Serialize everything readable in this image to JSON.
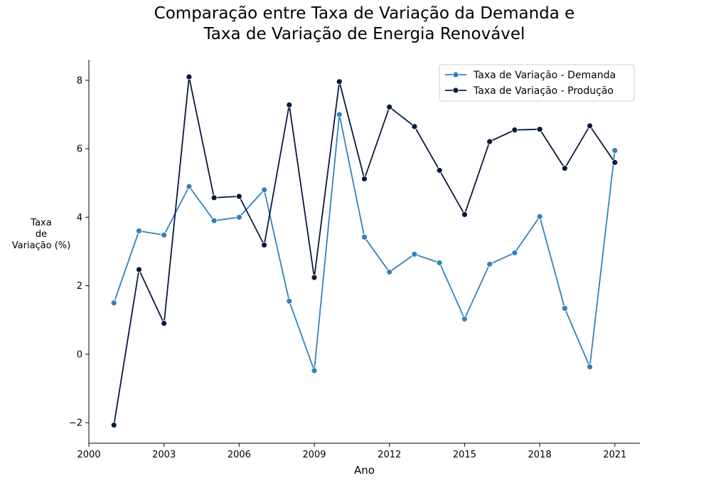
{
  "chart_data": {
    "type": "line",
    "title_lines": [
      "Comparação entre Taxa de Variação da Demanda e",
      "Taxa de Variação de Energia Renovável"
    ],
    "xlabel": "Ano",
    "ylabel_lines": [
      "Taxa",
      "de",
      "Variação (%)"
    ],
    "x": [
      2001,
      2002,
      2003,
      2004,
      2005,
      2006,
      2007,
      2008,
      2009,
      2010,
      2011,
      2012,
      2013,
      2014,
      2015,
      2016,
      2017,
      2018,
      2019,
      2020,
      2021
    ],
    "xlim": [
      2000,
      2022
    ],
    "ylim": [
      -2.6,
      8.6
    ],
    "xticks": [
      2000,
      2003,
      2006,
      2009,
      2012,
      2015,
      2018,
      2021
    ],
    "yticks": [
      -2,
      0,
      2,
      4,
      6,
      8
    ],
    "ytick_labels": [
      "−2",
      "0",
      "2",
      "4",
      "6",
      "8"
    ],
    "grid": false,
    "legend_position": "top-right",
    "series": [
      {
        "name": "Taxa de Variação - Demanda",
        "color": "#3182bd",
        "values": [
          1.5,
          3.6,
          3.48,
          4.9,
          3.9,
          4.0,
          4.8,
          1.55,
          -0.48,
          7.0,
          3.42,
          2.4,
          2.92,
          2.67,
          1.03,
          2.63,
          2.96,
          4.02,
          1.34,
          -0.37,
          5.95
        ]
      },
      {
        "name": "Taxa de Variação - Produção",
        "color": "#08193e",
        "values": [
          -2.07,
          2.47,
          0.9,
          8.1,
          4.57,
          4.61,
          3.19,
          7.28,
          2.24,
          7.96,
          5.12,
          7.22,
          6.65,
          5.37,
          4.08,
          6.21,
          6.55,
          6.57,
          5.43,
          6.67,
          5.6
        ]
      }
    ]
  }
}
